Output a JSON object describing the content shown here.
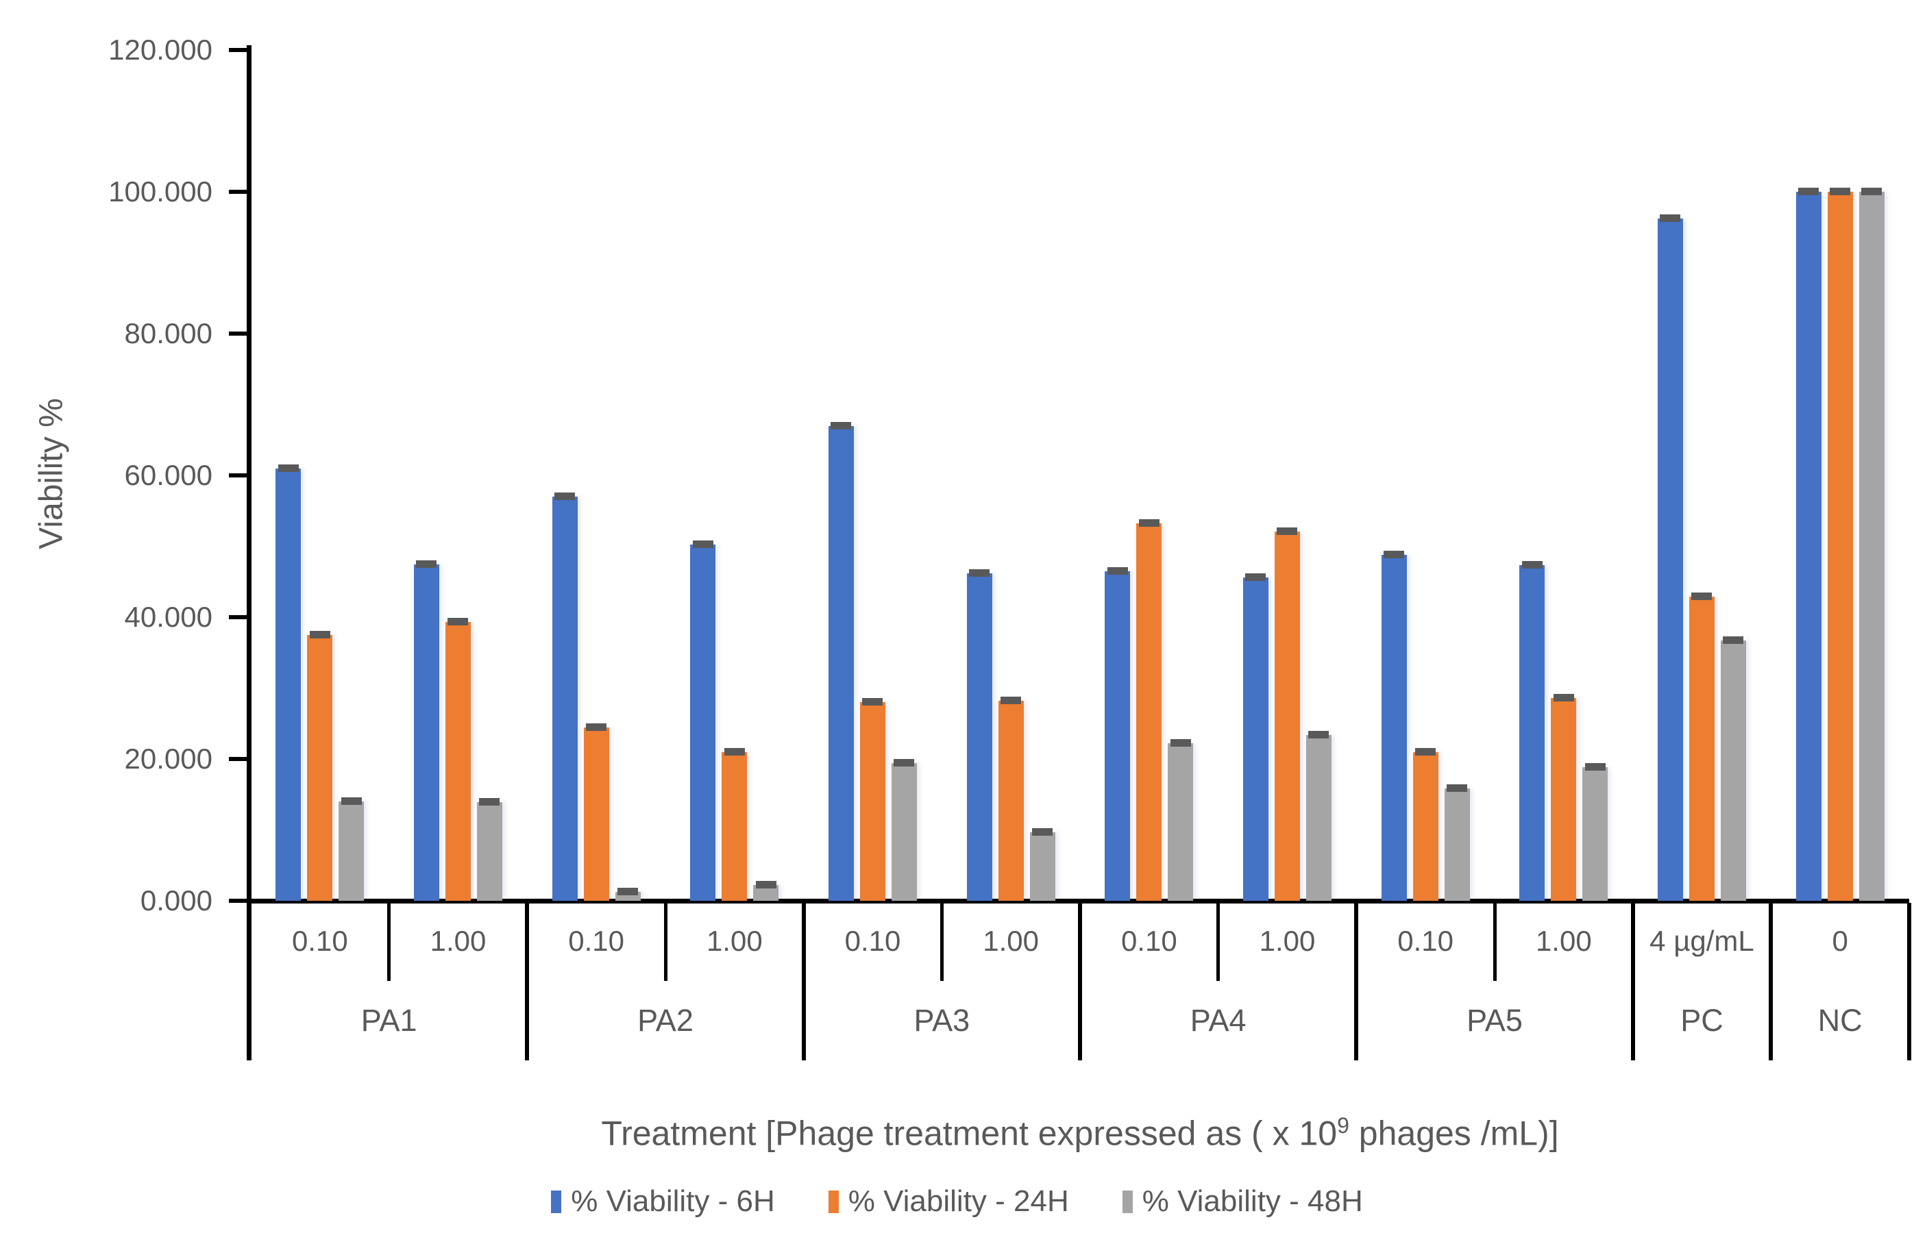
{
  "chart_data": {
    "type": "bar",
    "title": "",
    "ylabel": "Viability %",
    "xlabel_prefix": "Treatment [Phage treatment expressed as ( x 10",
    "xlabel_superscript": "9",
    "xlabel_suffix": " phages /mL)]",
    "ylim": [
      0,
      120
    ],
    "ytick_step": 20,
    "ytick_labels": [
      "0.000",
      "20.000",
      "40.000",
      "60.000",
      "80.000",
      "100.000",
      "120.000"
    ],
    "grid": false,
    "legend_position": "bottom",
    "axis_color": "#000000",
    "text_color": "#595959",
    "error_caps": true,
    "error_cap_color": "#595959",
    "groups": [
      {
        "label": "PA1",
        "doses": [
          "0.10",
          "1.00"
        ]
      },
      {
        "label": "PA2",
        "doses": [
          "0.10",
          "1.00"
        ]
      },
      {
        "label": "PA3",
        "doses": [
          "0.10",
          "1.00"
        ]
      },
      {
        "label": "PA4",
        "doses": [
          "0.10",
          "1.00"
        ]
      },
      {
        "label": "PA5",
        "doses": [
          "0.10",
          "1.00"
        ]
      },
      {
        "label": "PC",
        "doses": [
          "4 µg/mL"
        ]
      },
      {
        "label": "NC",
        "doses": [
          "0"
        ]
      }
    ],
    "categories": [
      "PA1 0.10",
      "PA1 1.00",
      "PA2 0.10",
      "PA2 1.00",
      "PA3 0.10",
      "PA3 1.00",
      "PA4 0.10",
      "PA4 1.00",
      "PA5 0.10",
      "PA5 1.00",
      "PC 4 µg/mL",
      "NC 0"
    ],
    "series": [
      {
        "name": "% Viability - 6H",
        "color": "#4472C4",
        "values": [
          61.0,
          47.4,
          57.0,
          50.2,
          67.0,
          46.2,
          46.5,
          45.6,
          48.8,
          47.3,
          96.2,
          100.0
        ]
      },
      {
        "name": "% Viability - 24H",
        "color": "#ED7D31",
        "values": [
          37.5,
          39.3,
          24.4,
          21.0,
          28.0,
          28.2,
          53.2,
          52.1,
          21.0,
          28.6,
          42.9,
          100.0
        ]
      },
      {
        "name": "% Viability - 48H",
        "color": "#A5A5A5",
        "values": [
          14.0,
          13.9,
          1.3,
          2.2,
          19.4,
          9.7,
          22.2,
          23.4,
          15.8,
          18.8,
          36.7,
          100.0
        ]
      }
    ]
  }
}
